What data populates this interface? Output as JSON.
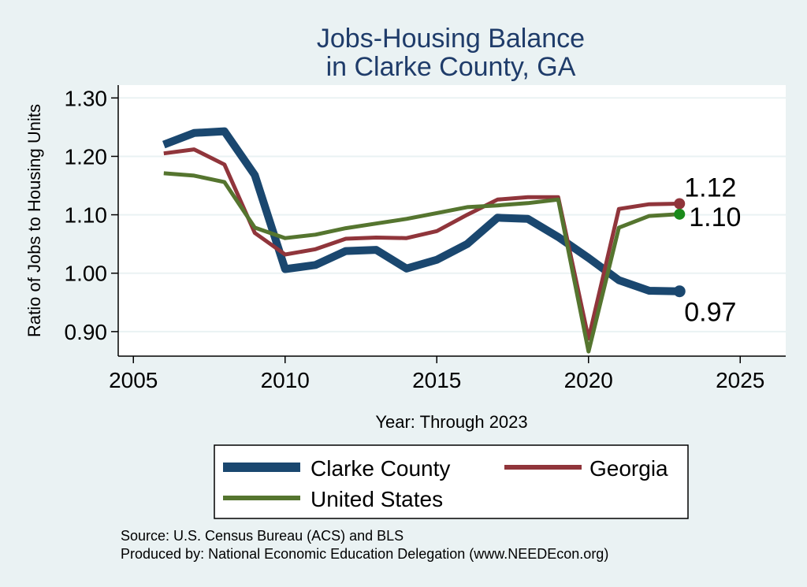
{
  "chart_data": {
    "type": "line",
    "title": [
      "Jobs-Housing Balance",
      "in Clarke County, GA"
    ],
    "xlabel": "Year: Through 2023",
    "ylabel": "Ratio of Jobs to Housing Units",
    "xlim": [
      2004.5,
      2026.5
    ],
    "ylim": [
      0.858,
      1.322
    ],
    "xticks": [
      2005,
      2010,
      2015,
      2020,
      2025
    ],
    "xtick_labels": [
      "2005",
      "2010",
      "2015",
      "2020",
      "2025"
    ],
    "yticks": [
      0.9,
      1.0,
      1.1,
      1.2,
      1.3
    ],
    "ytick_labels": [
      "0.90",
      "1.00",
      "1.10",
      "1.20",
      "1.30"
    ],
    "grid": true,
    "x": [
      2006,
      2007,
      2008,
      2009,
      2010,
      2011,
      2012,
      2013,
      2014,
      2015,
      2016,
      2017,
      2018,
      2019,
      2020,
      2021,
      2022,
      2023
    ],
    "series": [
      {
        "name": "Clarke County",
        "color": "#1a476f",
        "values": [
          1.22,
          1.24,
          1.243,
          1.168,
          1.007,
          1.014,
          1.038,
          1.04,
          1.008,
          1.023,
          1.05,
          1.095,
          1.093,
          1.062,
          1.026,
          0.988,
          0.97,
          0.969
        ],
        "end_label": "0.97"
      },
      {
        "name": "Georgia",
        "color": "#90353b",
        "values": [
          1.205,
          1.212,
          1.186,
          1.069,
          1.032,
          1.041,
          1.059,
          1.061,
          1.06,
          1.072,
          1.1,
          1.126,
          1.13,
          1.13,
          0.888,
          1.11,
          1.118,
          1.119
        ],
        "end_label": "1.12"
      },
      {
        "name": "United States",
        "color": "#55752f",
        "marker_color": "#1a8a1a",
        "values": [
          1.171,
          1.167,
          1.156,
          1.078,
          1.06,
          1.066,
          1.077,
          1.085,
          1.093,
          1.103,
          1.113,
          1.116,
          1.12,
          1.126,
          0.866,
          1.078,
          1.098,
          1.101
        ],
        "end_label": "1.10"
      }
    ],
    "legend": {
      "entries": [
        "Clarke County",
        "Georgia",
        "United States"
      ],
      "placement": "bottom"
    },
    "notes": [
      "Source: U.S. Census Bureau (ACS) and BLS",
      "Produced by: National Economic Education Delegation (www.NEEDEcon.org)"
    ]
  }
}
